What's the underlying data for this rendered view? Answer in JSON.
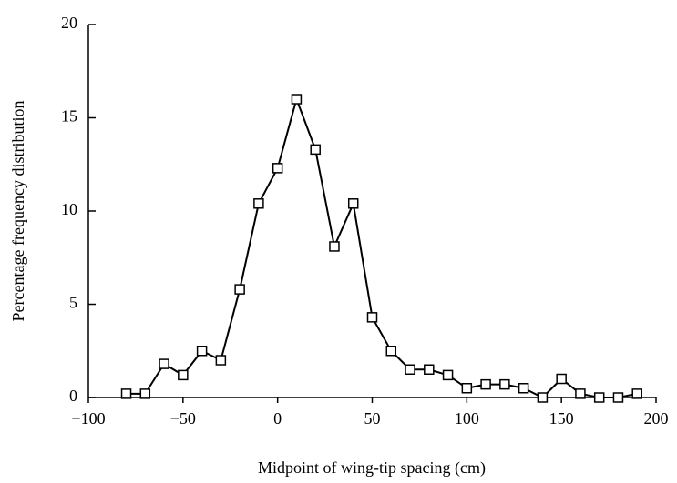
{
  "chart_data": {
    "type": "line",
    "x_label": "Midpoint of wing-tip spacing (cm)",
    "y_label": "Percentage frequency distribution",
    "x": [
      -80,
      -70,
      -60,
      -50,
      -40,
      -30,
      -20,
      -10,
      0,
      10,
      20,
      30,
      40,
      50,
      60,
      70,
      80,
      90,
      100,
      110,
      120,
      130,
      140,
      150,
      160,
      170,
      180,
      190
    ],
    "values": [
      0.2,
      0.2,
      1.8,
      1.2,
      2.5,
      2.0,
      5.8,
      10.4,
      12.3,
      16,
      13.3,
      8.1,
      10.4,
      4.3,
      2.5,
      1.5,
      1.5,
      1.2,
      0.5,
      0.7,
      0.7,
      0.5,
      0,
      1.0,
      0.2,
      0,
      0,
      0.2
    ],
    "color": "#000000",
    "xlim": [
      -100,
      200
    ],
    "xticks": [
      {
        "value": -100,
        "label": "−100"
      },
      {
        "value": -50,
        "label": "−50"
      },
      0,
      50,
      100,
      150,
      200
    ],
    "ylim": [
      0,
      20
    ],
    "yticks": [
      0,
      5,
      10,
      15,
      20
    ],
    "grid": false
  }
}
